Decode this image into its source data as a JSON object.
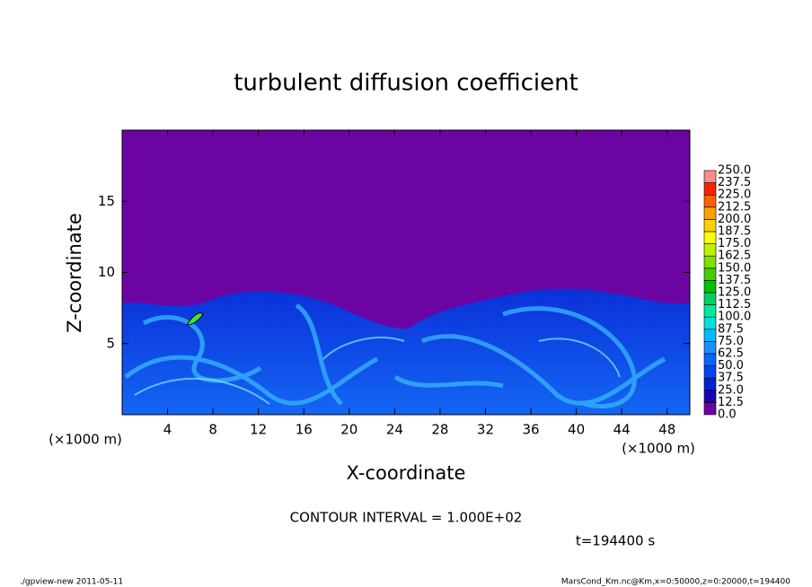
{
  "chart_data": {
    "type": "heatmap",
    "title": "turbulent diffusion coefficient",
    "x_label": "X-coordinate",
    "y_label": "Z-coordinate",
    "x_unit": "(×1000 m)",
    "y_unit": "(×1000 m)",
    "xlim": [
      0,
      50
    ],
    "xticks": [
      4,
      8,
      12,
      16,
      20,
      24,
      28,
      32,
      36,
      40,
      44,
      48
    ],
    "ylim": [
      0,
      20
    ],
    "yticks": [
      5,
      10,
      15
    ],
    "colorbar": {
      "levels": [
        {
          "value": 0,
          "label": "0.0"
        },
        {
          "value": 12.5,
          "label": "12.5"
        },
        {
          "value": 25,
          "label": "25.0"
        },
        {
          "value": 37.5,
          "label": "37.5"
        },
        {
          "value": 50,
          "label": "50.0"
        },
        {
          "value": 62.5,
          "label": "62.5"
        },
        {
          "value": 75,
          "label": "75.0"
        },
        {
          "value": 87.5,
          "label": "87.5"
        },
        {
          "value": 100,
          "label": "100.0"
        },
        {
          "value": 112.5,
          "label": "112.5"
        },
        {
          "value": 125,
          "label": "125.0"
        },
        {
          "value": 137.5,
          "label": "137.5"
        },
        {
          "value": 150,
          "label": "150.0"
        },
        {
          "value": 162.5,
          "label": "162.5"
        },
        {
          "value": 175,
          "label": "175.0"
        },
        {
          "value": 187.5,
          "label": "187.5"
        },
        {
          "value": 200,
          "label": "200.0"
        },
        {
          "value": 212.5,
          "label": "212.5"
        },
        {
          "value": 225,
          "label": "225.0"
        },
        {
          "value": 237.5,
          "label": "237.5"
        },
        {
          "value": 250,
          "label": "250.0"
        }
      ],
      "colors": [
        "#6c04a4",
        "#1c00b4",
        "#0024d4",
        "#0044f0",
        "#0068ff",
        "#1890ff",
        "#00bcff",
        "#00e0e0",
        "#00e8a0",
        "#00d060",
        "#00c000",
        "#40d000",
        "#80e000",
        "#c0f000",
        "#ffff00",
        "#ffd000",
        "#ffa000",
        "#ff6000",
        "#ff2000",
        "#ff8c8c"
      ]
    },
    "contour_interval": "CONTOUR INTERVAL = 1.000E+02",
    "time": "t=194400 s",
    "footer_left": "./gpview-new   2011-05-11",
    "footer_right": "MarsCond_Km.nc@Km,x=0:50000,z=0:20000,t=194400"
  }
}
